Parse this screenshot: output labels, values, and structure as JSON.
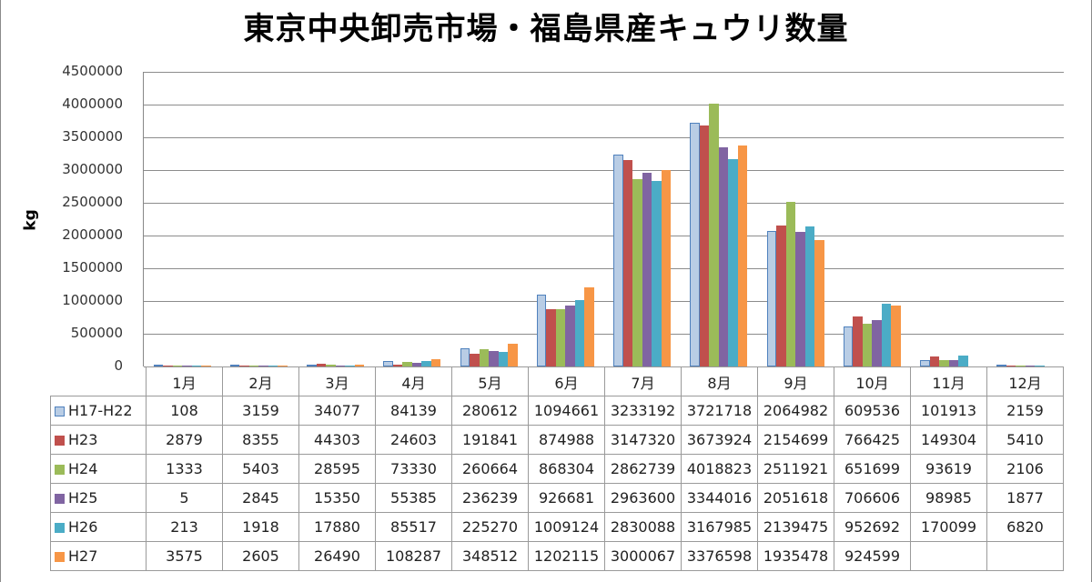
{
  "chart_data": {
    "type": "bar",
    "title": "東京中央卸売市場・福島県産キュウリ数量",
    "xlabel": "",
    "ylabel": "kg",
    "ylim": [
      0,
      4500000
    ],
    "yticks": [
      "4500000",
      "4000000",
      "3500000",
      "3000000",
      "2500000",
      "2000000",
      "1500000",
      "1000000",
      "500000",
      "0"
    ],
    "grid": true,
    "legend_position": "data-table",
    "categories": [
      "1月",
      "2月",
      "3月",
      "4月",
      "5月",
      "6月",
      "7月",
      "8月",
      "9月",
      "10月",
      "11月",
      "12月"
    ],
    "series": [
      {
        "name": "H17-H22",
        "color": "#b9cde5",
        "border": "#4f81bd",
        "values": [
          108,
          3159,
          34077,
          84139,
          280612,
          1094661,
          3233192,
          3721718,
          2064982,
          609536,
          101913,
          2159
        ]
      },
      {
        "name": "H23",
        "color": "#c0504d",
        "border": "#c0504d",
        "values": [
          2879,
          8355,
          44303,
          24603,
          191841,
          874988,
          3147320,
          3673924,
          2154699,
          766425,
          149304,
          5410
        ]
      },
      {
        "name": "H24",
        "color": "#9bbb59",
        "border": "#9bbb59",
        "values": [
          1333,
          5403,
          28595,
          73330,
          260664,
          868304,
          2862739,
          4018823,
          2511921,
          651699,
          93619,
          2106
        ]
      },
      {
        "name": "H25",
        "color": "#8064a2",
        "border": "#8064a2",
        "values": [
          5,
          2845,
          15350,
          55385,
          236239,
          926681,
          2963600,
          3344016,
          2051618,
          706606,
          98985,
          1877
        ]
      },
      {
        "name": "H26",
        "color": "#4bacc6",
        "border": "#4bacc6",
        "values": [
          213,
          1918,
          17880,
          85517,
          225270,
          1009124,
          2830088,
          3167985,
          2139475,
          952692,
          170099,
          6820
        ]
      },
      {
        "name": "H27",
        "color": "#f79646",
        "border": "#f79646",
        "values": [
          3575,
          2605,
          26490,
          108287,
          348512,
          1202115,
          3000067,
          3376598,
          1935478,
          924599,
          null,
          null
        ]
      }
    ]
  },
  "table": {
    "rows": [
      {
        "label": "H17-H22",
        "cells": [
          "108",
          "3159",
          "34077",
          "84139",
          "280612",
          "1094661",
          "3233192",
          "3721718",
          "2064982",
          "609536",
          "101913",
          "2159"
        ]
      },
      {
        "label": "H23",
        "cells": [
          "2879",
          "8355",
          "44303",
          "24603",
          "191841",
          "874988",
          "3147320",
          "3673924",
          "2154699",
          "766425",
          "149304",
          "5410"
        ]
      },
      {
        "label": "H24",
        "cells": [
          "1333",
          "5403",
          "28595",
          "73330",
          "260664",
          "868304",
          "2862739",
          "4018823",
          "2511921",
          "651699",
          "93619",
          "2106"
        ]
      },
      {
        "label": "H25",
        "cells": [
          "5",
          "2845",
          "15350",
          "55385",
          "236239",
          "926681",
          "2963600",
          "3344016",
          "2051618",
          "706606",
          "98985",
          "1877"
        ]
      },
      {
        "label": "H26",
        "cells": [
          "213",
          "1918",
          "17880",
          "85517",
          "225270",
          "1009124",
          "2830088",
          "3167985",
          "2139475",
          "952692",
          "170099",
          "6820"
        ]
      },
      {
        "label": "H27",
        "cells": [
          "3575",
          "2605",
          "26490",
          "108287",
          "348512",
          "1202115",
          "3000067",
          "3376598",
          "1935478",
          "924599",
          "",
          ""
        ]
      }
    ]
  }
}
